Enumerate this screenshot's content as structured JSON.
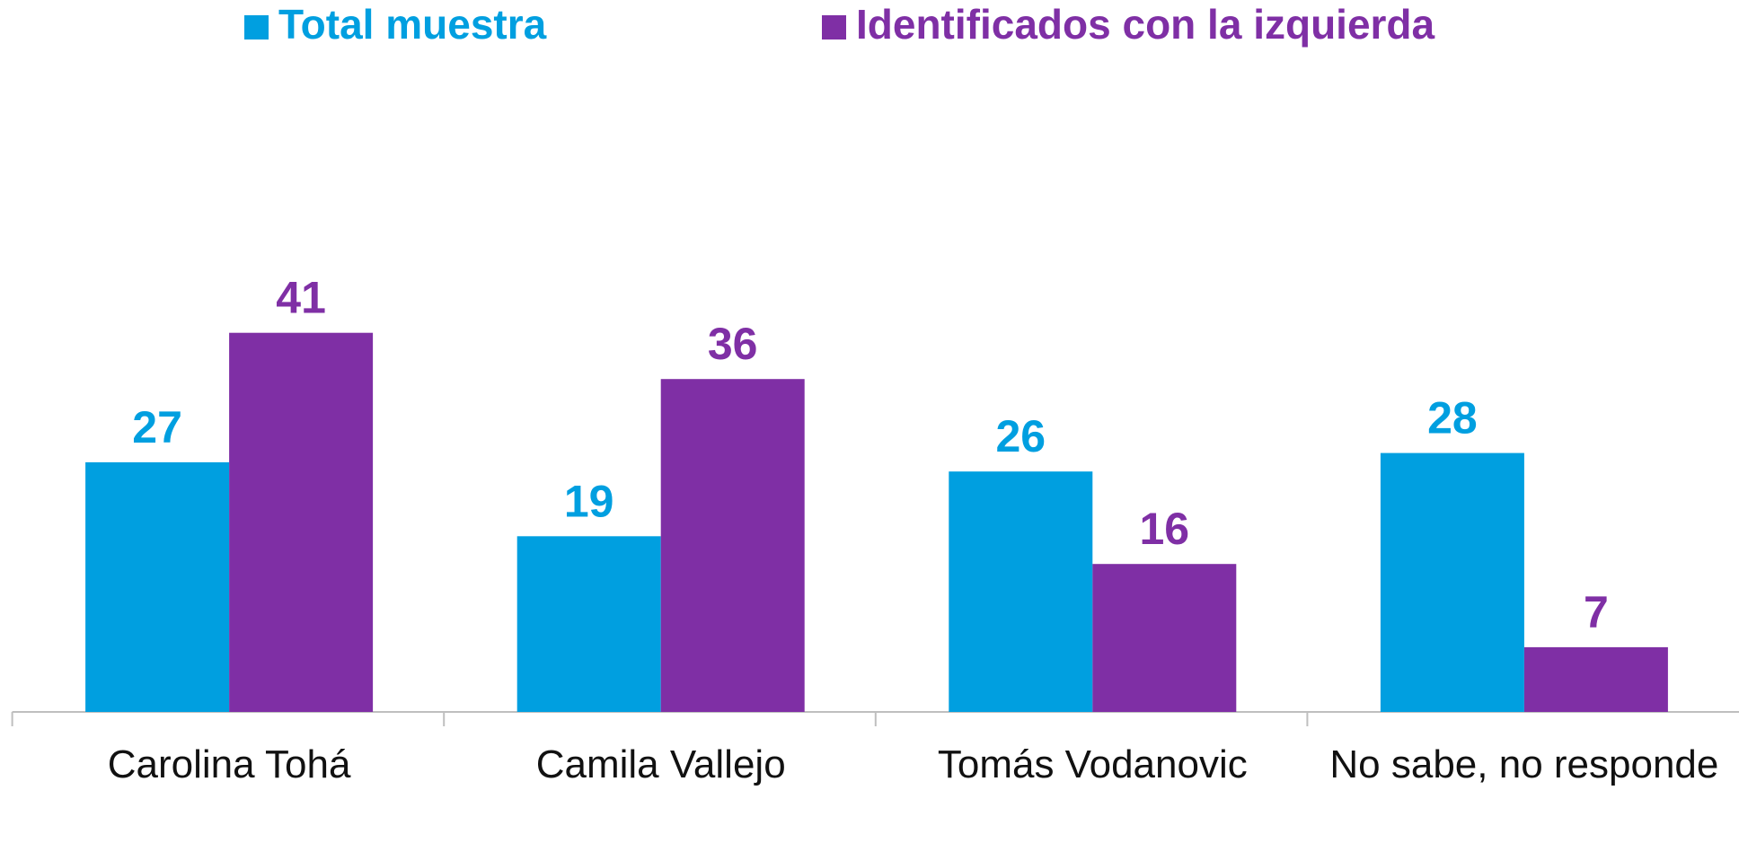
{
  "chart_data": {
    "type": "bar",
    "categories": [
      "Carolina Tohá",
      "Camila Vallejo",
      "Tomás Vodanovic",
      "No sabe, no responde"
    ],
    "series": [
      {
        "name": "Total muestra",
        "color": "#009fe0",
        "values": [
          27,
          19,
          26,
          28
        ]
      },
      {
        "name": "Identificados con la izquierda",
        "color": "#7f2fa5",
        "values": [
          41,
          36,
          16,
          7
        ]
      }
    ]
  }
}
